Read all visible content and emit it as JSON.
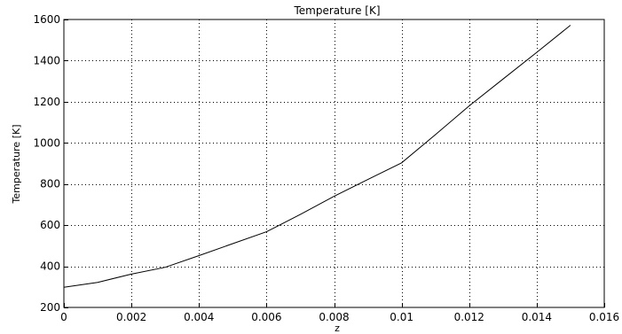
{
  "chart_data": {
    "type": "line",
    "title": "Temperature [K]",
    "xlabel": "z",
    "ylabel": "Temperature [K]",
    "xlim": [
      0,
      0.016
    ],
    "ylim": [
      200,
      1600
    ],
    "x_ticks": [
      0,
      0.002,
      0.004,
      0.006,
      0.008,
      0.01,
      0.012,
      0.014,
      0.016
    ],
    "x_tick_labels": [
      "0",
      "0.002",
      "0.004",
      "0.006",
      "0.008",
      "0.01",
      "0.012",
      "0.014",
      "0.016"
    ],
    "y_ticks": [
      200,
      400,
      600,
      800,
      1000,
      1200,
      1400,
      1600
    ],
    "y_tick_labels": [
      "200",
      "400",
      "600",
      "800",
      "1000",
      "1200",
      "1400",
      "1600"
    ],
    "grid": true,
    "grid_style": "dotted",
    "line_color": "#000000",
    "series": [
      {
        "x": [
          0,
          0.001,
          0.002,
          0.003,
          0.004,
          0.005,
          0.006,
          0.007,
          0.008,
          0.009,
          0.01,
          0.011,
          0.012,
          0.013,
          0.014,
          0.015
        ],
        "y": [
          298,
          322,
          362,
          395,
          452,
          510,
          568,
          652,
          740,
          822,
          903,
          1040,
          1180,
          1310,
          1440,
          1572
        ]
      }
    ]
  }
}
